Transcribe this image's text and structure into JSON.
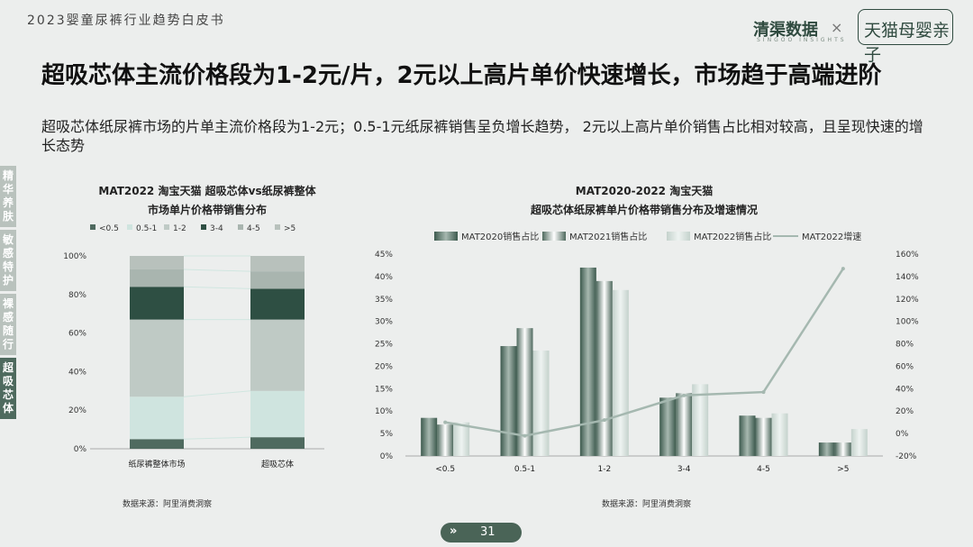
{
  "header": {
    "report_title": "2023婴童尿裤行业趋势白皮书",
    "logo_left": "清渠数据",
    "logo_left_sub": "SINGOO INSIGHTS",
    "logo_sep": "×",
    "logo_right": "天猫母婴亲子"
  },
  "headline": "超吸芯体主流价格段为1-2元/片，2元以上高片单价快速增长，市场趋于高端进阶",
  "description": "超吸芯体纸尿裤市场的片单主流价格段为1-2元；0.5-1元纸尿裤销售呈负增长趋势， 2元以上高片单价销售占比相对较高，且呈现快速的增长态势",
  "sidebar": {
    "tabs": [
      "精华养肤",
      "敏感特护",
      "裸感随行",
      "超吸芯体"
    ],
    "active_index": 3
  },
  "page_number": "31",
  "page_arrow": "»",
  "chart_data": [
    {
      "type": "bar",
      "stacked": true,
      "title_lines": [
        "MAT2022 淘宝天猫 超吸芯体vs纸尿裤整体",
        "市场单片价格带销售分布"
      ],
      "categories": [
        "纸尿裤整体市场",
        "超吸芯体"
      ],
      "series": [
        {
          "name": "<0.5",
          "values": [
            5,
            6
          ],
          "color": "#4f6a5f"
        },
        {
          "name": "0.5-1",
          "values": [
            22,
            24
          ],
          "color": "#cfe4df"
        },
        {
          "name": "1-2",
          "values": [
            40,
            37
          ],
          "color": "#bfcac5"
        },
        {
          "name": "3-4",
          "values": [
            17,
            16
          ],
          "color": "#2e4f43"
        },
        {
          "name": "4-5",
          "values": [
            9,
            9
          ],
          "color": "#a9b5af"
        },
        {
          "name": ">5",
          "values": [
            7,
            8
          ],
          "color": "#b8c1bc"
        }
      ],
      "yticks": [
        "0%",
        "20%",
        "40%",
        "60%",
        "80%",
        "100%"
      ],
      "ylim": [
        0,
        100
      ],
      "source": "数据来源：阿里消费洞察"
    },
    {
      "type": "bar+line",
      "title_lines": [
        "MAT2020-2022 淘宝天猫",
        "超吸芯体纸尿裤单片价格带销售分布及增速情况"
      ],
      "categories": [
        "<0.5",
        "0.5-1",
        "1-2",
        "3-4",
        "4-5",
        ">5"
      ],
      "series": [
        {
          "name": "MAT2020销售占比",
          "values": [
            8.5,
            24.5,
            42,
            13,
            9,
            3
          ]
        },
        {
          "name": "MAT2021销售占比",
          "values": [
            7,
            28.5,
            39,
            14,
            8.5,
            3
          ]
        },
        {
          "name": "MAT2022销售占比",
          "values": [
            7.5,
            23.5,
            37,
            16,
            9.5,
            6
          ]
        }
      ],
      "line": {
        "name": "MAT2022增速",
        "values": [
          10,
          -2,
          12,
          34,
          37,
          147
        ]
      },
      "yticks_left": [
        "0%",
        "5%",
        "10%",
        "15%",
        "20%",
        "25%",
        "30%",
        "35%",
        "40%",
        "45%"
      ],
      "ylim_left": [
        0,
        45
      ],
      "yticks_right": [
        "-20%",
        "0%",
        "20%",
        "40%",
        "60%",
        "80%",
        "100%",
        "120%",
        "140%",
        "160%"
      ],
      "ylim_right": [
        -20,
        160
      ],
      "source": "数据来源：阿里消费洞察"
    }
  ]
}
